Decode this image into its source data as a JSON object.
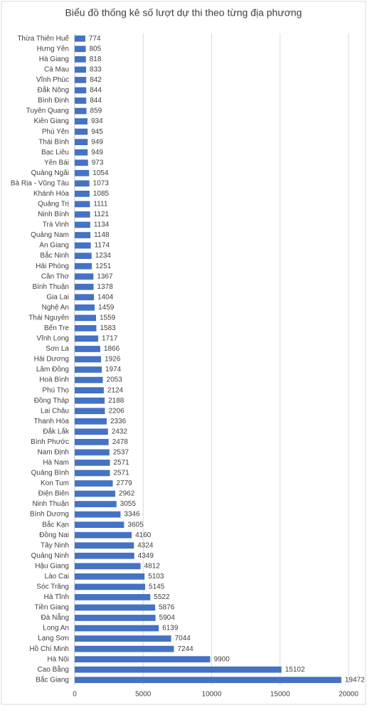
{
  "chart_data": {
    "type": "hbar",
    "title": "Biểu đồ thống kê số lượt dự thi theo từng địa phương",
    "categories": [
      "Thừa Thiên Huế",
      "Hưng Yên",
      "Hà Giang",
      "Cà Mau",
      "Vĩnh Phúc",
      "Đắk Nông",
      "Bình Định",
      "Tuyên Quang",
      "Kiên Giang",
      "Phú Yên",
      "Thái Bình",
      "Bạc Liêu",
      "Yên Bái",
      "Quảng Ngãi",
      "Bà Rịa - Vũng Tàu",
      "Khánh Hòa",
      "Quảng Trị",
      "Ninh Bình",
      "Trà Vinh",
      "Quảng Nam",
      "An Giang",
      "Bắc Ninh",
      "Hải Phòng",
      "Cần Thơ",
      "Bình Thuận",
      "Gia Lai",
      "Nghệ An",
      "Thái Nguyên",
      "Bến Tre",
      "Vĩnh Long",
      "Sơn La",
      "Hải Dương",
      "Lâm Đồng",
      "Hoà Bình",
      "Phú Thọ",
      "Đồng Tháp",
      "Lai Châu",
      "Thanh Hóa",
      "Đắk Lắk",
      "Bình Phước",
      "Nam Định",
      "Hà Nam",
      "Quảng Bình",
      "Kon Tum",
      "Điện Biên",
      "Ninh Thuận",
      "Bình Dương",
      "Bắc Kạn",
      "Đồng Nai",
      "Tây Ninh",
      "Quảng Ninh",
      "Hậu Giang",
      "Lào Cai",
      "Sóc Trăng",
      "Hà Tĩnh",
      "Tiền Giang",
      "Đà Nẵng",
      "Long An",
      "Lạng Sơn",
      "Hồ Chí Minh",
      "Hà Nội",
      "Cao Bằng",
      "Bắc Giang"
    ],
    "values": [
      774,
      805,
      818,
      833,
      842,
      844,
      844,
      859,
      934,
      945,
      949,
      949,
      973,
      1054,
      1073,
      1085,
      1111,
      1121,
      1134,
      1148,
      1174,
      1234,
      1251,
      1367,
      1378,
      1404,
      1459,
      1559,
      1583,
      1717,
      1866,
      1926,
      1974,
      2053,
      2124,
      2188,
      2206,
      2336,
      2432,
      2478,
      2537,
      2571,
      2571,
      2779,
      2962,
      3055,
      3346,
      3605,
      4160,
      4324,
      4349,
      4812,
      5103,
      5145,
      5522,
      5876,
      5904,
      6139,
      7044,
      7244,
      9900,
      15102,
      19472
    ],
    "color": "#4472c4",
    "xlim": [
      0,
      20000
    ],
    "xticks": [
      0,
      5000,
      10000,
      15000,
      20000
    ],
    "grid": true
  }
}
